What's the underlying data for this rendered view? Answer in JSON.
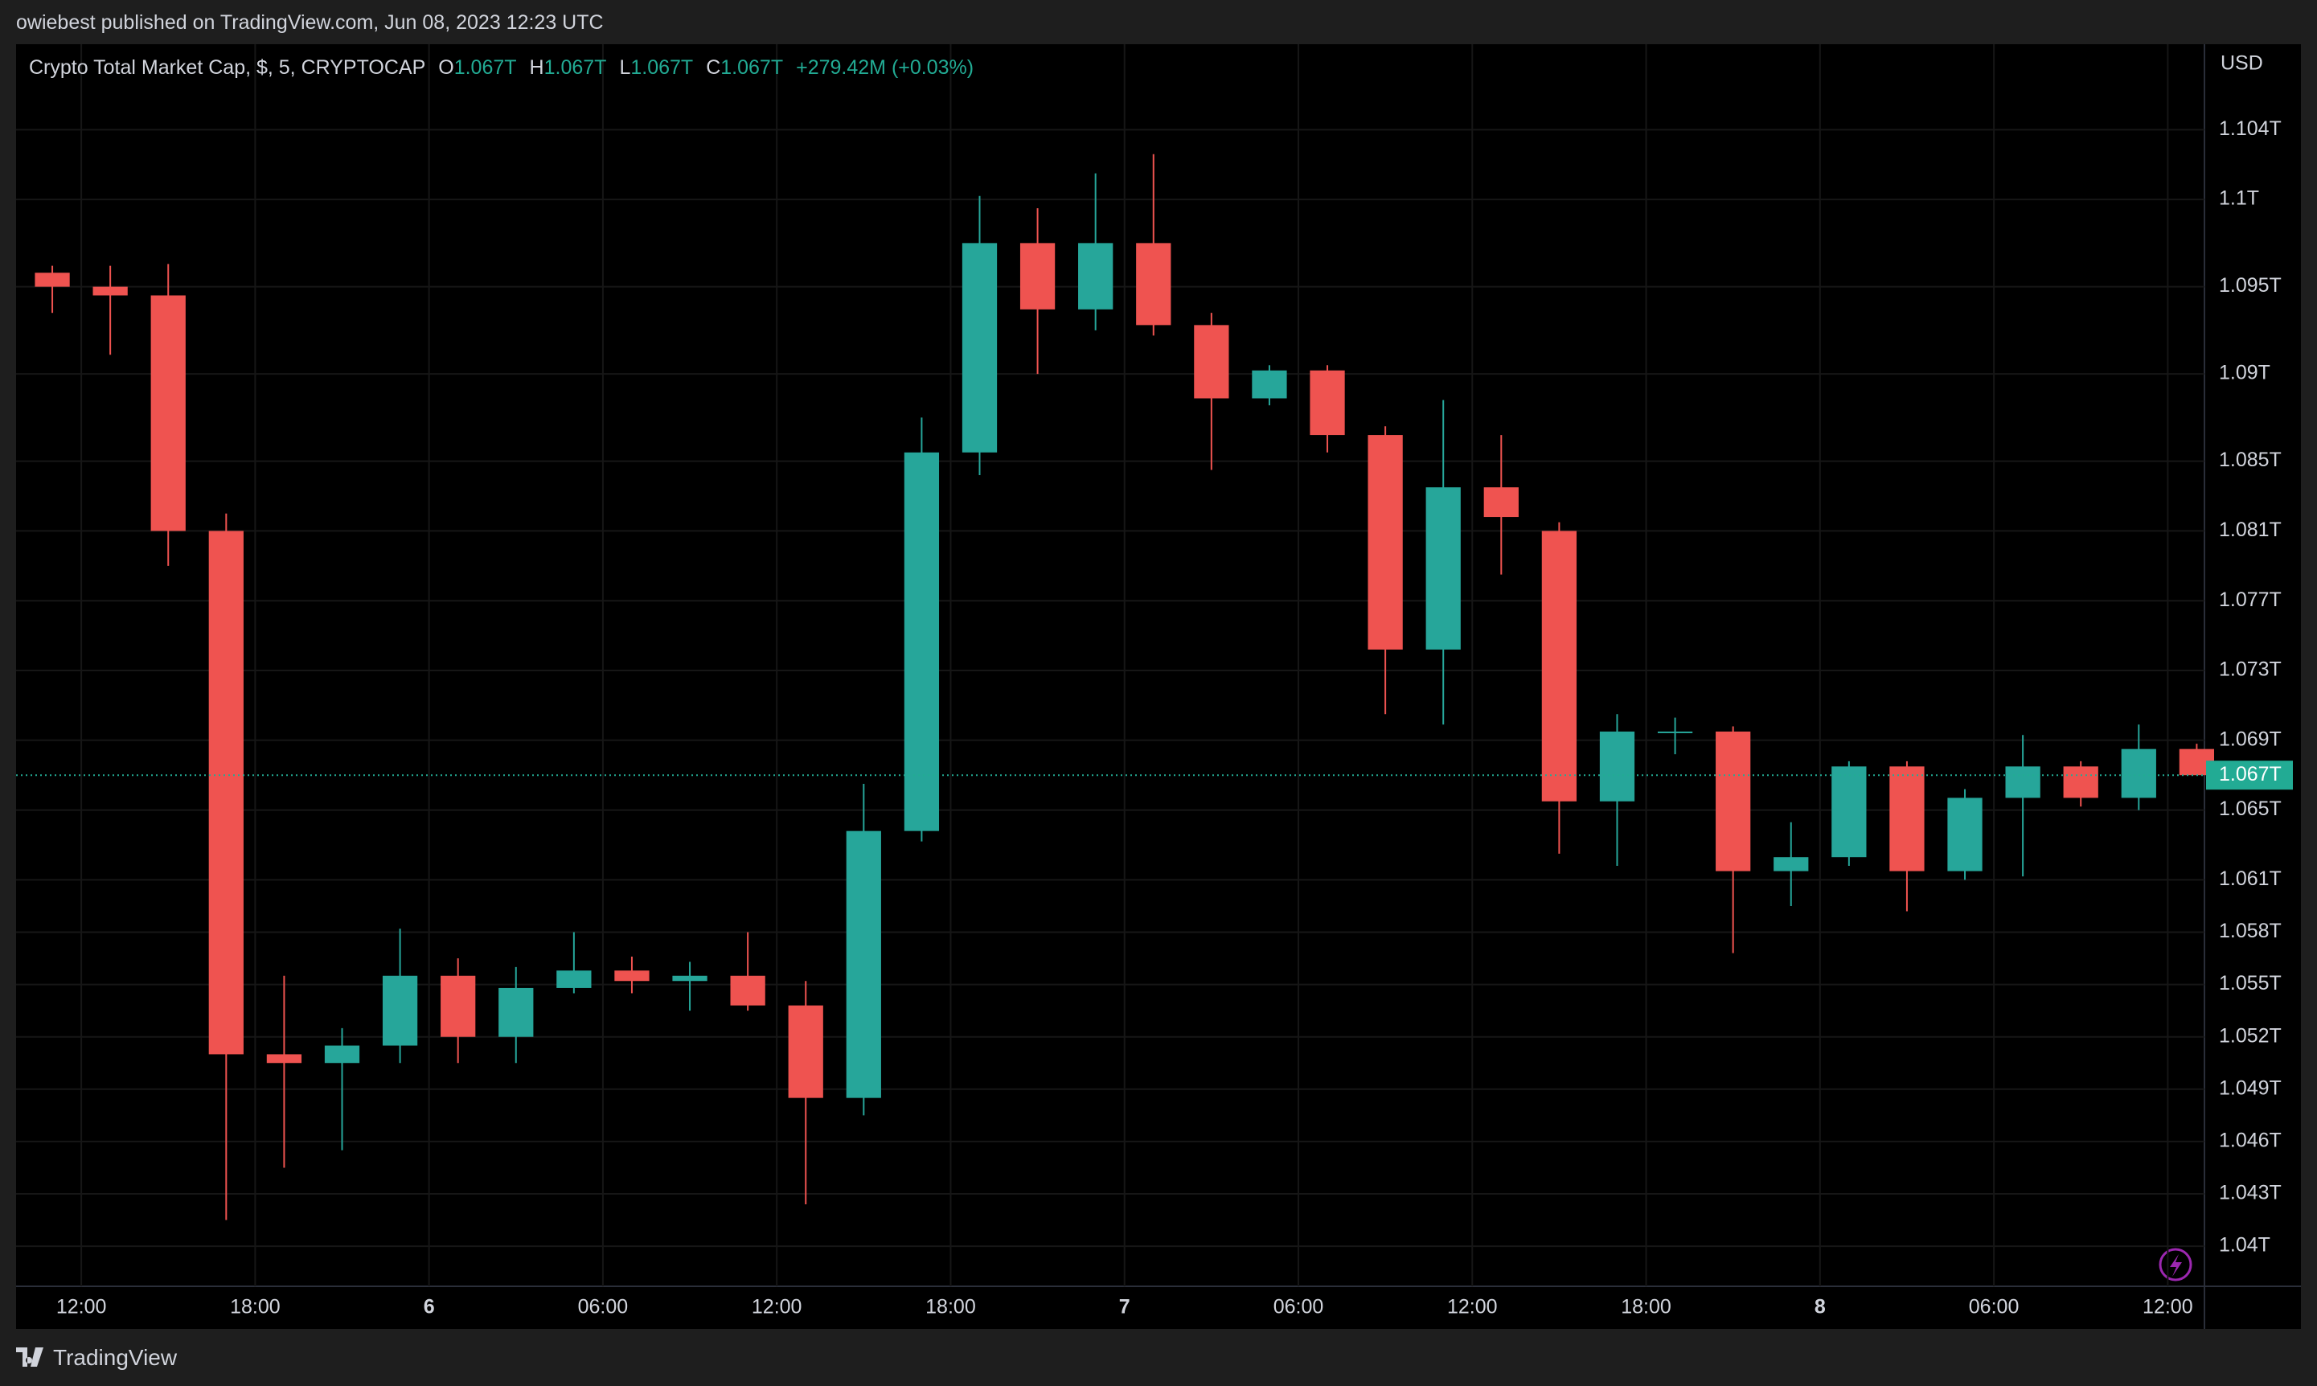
{
  "header": {
    "published": "owiebest published on TradingView.com, Jun 08, 2023 12:23 UTC",
    "footer": "TradingView"
  },
  "chart_data": {
    "type": "candlestick",
    "title": "Crypto Total Market Cap, $, 5, CRYPTOCAP",
    "legend": [
      {
        "key": "O",
        "value": "1.067T"
      },
      {
        "key": "H",
        "value": "1.067T"
      },
      {
        "key": "L",
        "value": "1.067T"
      },
      {
        "key": "C",
        "value": "1.067T"
      }
    ],
    "change": "+279.42M (+0.03%)",
    "currency": "USD",
    "up_color": "#26a69a",
    "down_color": "#ef5350",
    "x": [
      "2023-06-05T10:00",
      "2023-06-05T12:00",
      "2023-06-05T14:00",
      "2023-06-05T16:00",
      "2023-06-05T18:00",
      "2023-06-05T20:00",
      "2023-06-05T22:00",
      "2023-06-06T00:00",
      "2023-06-06T02:00",
      "2023-06-06T04:00",
      "2023-06-06T06:00",
      "2023-06-06T08:00",
      "2023-06-06T10:00",
      "2023-06-06T12:00",
      "2023-06-06T14:00",
      "2023-06-06T16:00",
      "2023-06-06T18:00",
      "2023-06-06T20:00",
      "2023-06-06T22:00",
      "2023-06-07T00:00",
      "2023-06-07T02:00",
      "2023-06-07T04:00",
      "2023-06-07T06:00",
      "2023-06-07T08:00",
      "2023-06-07T10:00",
      "2023-06-07T12:00",
      "2023-06-07T14:00",
      "2023-06-07T16:00",
      "2023-06-07T18:00",
      "2023-06-07T20:00",
      "2023-06-07T22:00",
      "2023-06-08T00:00",
      "2023-06-08T02:00",
      "2023-06-08T04:00",
      "2023-06-08T06:00",
      "2023-06-08T08:00",
      "2023-06-08T10:00",
      "2023-06-08T12:00"
    ],
    "open": [
      1.0958,
      1.095,
      1.0945,
      1.081,
      1.051,
      1.0505,
      1.0515,
      1.0555,
      1.052,
      1.0548,
      1.0558,
      1.0552,
      1.0555,
      1.0538,
      1.0485,
      1.0638,
      1.0855,
      1.0975,
      1.0937,
      1.0975,
      1.0928,
      1.0886,
      1.0902,
      1.0865,
      1.0742,
      1.0835,
      1.081,
      1.0655,
      1.0695,
      1.0695,
      1.0615,
      1.0623,
      1.0675,
      1.0615,
      1.0657,
      1.0675,
      1.0657,
      1.0685
    ],
    "high": [
      1.0962,
      1.0962,
      1.0963,
      1.082,
      1.0555,
      1.0525,
      1.0582,
      1.0565,
      1.056,
      1.058,
      1.0566,
      1.0563,
      1.058,
      1.0552,
      1.0665,
      1.0875,
      1.1002,
      1.0995,
      1.1015,
      1.1026,
      1.0935,
      1.0905,
      1.0905,
      1.087,
      1.0885,
      1.0865,
      1.0815,
      1.0705,
      1.0703,
      1.0698,
      1.0643,
      1.0678,
      1.0678,
      1.0662,
      1.0693,
      1.0678,
      1.0699,
      1.0688
    ],
    "low": [
      1.0935,
      1.0911,
      1.079,
      1.0415,
      1.0445,
      1.0455,
      1.0505,
      1.0505,
      1.0505,
      1.0545,
      1.0545,
      1.0535,
      1.0535,
      1.0424,
      1.0475,
      1.0632,
      1.0842,
      1.09,
      1.0925,
      1.0922,
      1.0845,
      1.0882,
      1.0855,
      1.0705,
      1.0699,
      1.0785,
      1.0625,
      1.0618,
      1.0682,
      1.0568,
      1.0595,
      1.0618,
      1.0592,
      1.061,
      1.0612,
      1.0652,
      1.065,
      1.0672
    ],
    "close": [
      1.095,
      1.0945,
      1.081,
      1.051,
      1.0505,
      1.0515,
      1.0555,
      1.052,
      1.0548,
      1.0558,
      1.0552,
      1.0555,
      1.0538,
      1.0485,
      1.0638,
      1.0855,
      1.0975,
      1.0937,
      1.0975,
      1.0928,
      1.0886,
      1.0902,
      1.0865,
      1.0742,
      1.0835,
      1.0818,
      1.0655,
      1.0695,
      1.0695,
      1.0615,
      1.0623,
      1.0675,
      1.0615,
      1.0657,
      1.0675,
      1.0657,
      1.0685,
      1.067
    ],
    "candle_hours": 2,
    "xlim": [
      "2023-06-05T09:45",
      "2023-06-08T13:16"
    ],
    "xticks": [
      {
        "value": "2023-06-05T12:00",
        "label": "12:00"
      },
      {
        "value": "2023-06-05T18:00",
        "label": "18:00"
      },
      {
        "value": "2023-06-06T00:00",
        "label": "6"
      },
      {
        "value": "2023-06-06T06:00",
        "label": "06:00"
      },
      {
        "value": "2023-06-06T12:00",
        "label": "12:00"
      },
      {
        "value": "2023-06-06T18:00",
        "label": "18:00"
      },
      {
        "value": "2023-06-07T00:00",
        "label": "7"
      },
      {
        "value": "2023-06-07T06:00",
        "label": "06:00"
      },
      {
        "value": "2023-06-07T12:00",
        "label": "12:00"
      },
      {
        "value": "2023-06-07T18:00",
        "label": "18:00"
      },
      {
        "value": "2023-06-08T00:00",
        "label": "8"
      },
      {
        "value": "2023-06-08T06:00",
        "label": "06:00"
      },
      {
        "value": "2023-06-08T12:00",
        "label": "12:00"
      }
    ],
    "ylim": [
      1.0377,
      1.1089
    ],
    "yticks": [
      {
        "value": 1.104,
        "label": "1.104T"
      },
      {
        "value": 1.1,
        "label": "1.1T"
      },
      {
        "value": 1.095,
        "label": "1.095T"
      },
      {
        "value": 1.09,
        "label": "1.09T"
      },
      {
        "value": 1.085,
        "label": "1.085T"
      },
      {
        "value": 1.081,
        "label": "1.081T"
      },
      {
        "value": 1.077,
        "label": "1.077T"
      },
      {
        "value": 1.073,
        "label": "1.073T"
      },
      {
        "value": 1.069,
        "label": "1.069T"
      },
      {
        "value": 1.065,
        "label": "1.065T"
      },
      {
        "value": 1.061,
        "label": "1.061T"
      },
      {
        "value": 1.058,
        "label": "1.058T"
      },
      {
        "value": 1.055,
        "label": "1.055T"
      },
      {
        "value": 1.052,
        "label": "1.052T"
      },
      {
        "value": 1.049,
        "label": "1.049T"
      },
      {
        "value": 1.046,
        "label": "1.046T"
      },
      {
        "value": 1.043,
        "label": "1.043T"
      },
      {
        "value": 1.04,
        "label": "1.04T"
      }
    ],
    "price_line": {
      "value": 1.067,
      "label": "1.067T",
      "color": "#22ab94"
    },
    "grid": true
  }
}
